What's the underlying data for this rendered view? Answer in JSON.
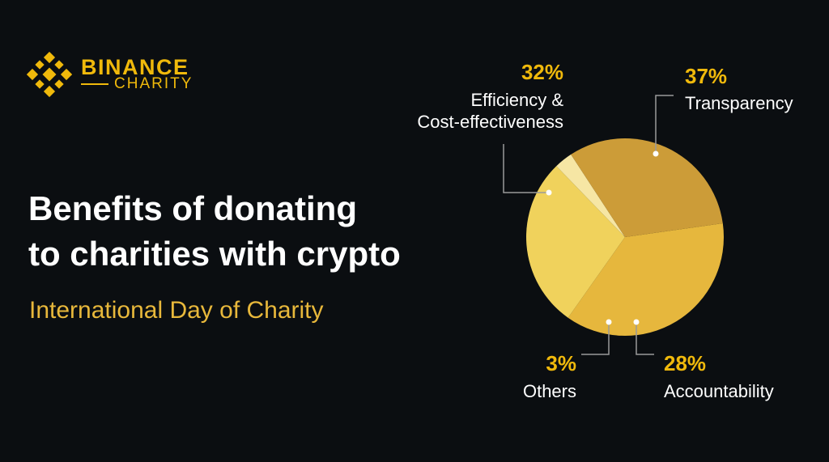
{
  "logo": {
    "brand": "BINANCE",
    "sub": "CHARITY",
    "icon": "binance-diamond-icon"
  },
  "headline": {
    "line1": "Benefits of donating",
    "line2": "to charities with crypto"
  },
  "subtitle": "International Day of Charity",
  "colors": {
    "background": "#0b0e11",
    "accent": "#f0b90b",
    "transparency": "#e6b73d",
    "accountability": "#f0d25c",
    "others": "#f6e6a4",
    "efficiency": "#cc9c38"
  },
  "chart_data": {
    "type": "pie",
    "slices": [
      {
        "key": "transparency",
        "label": "Transparency",
        "value": 37,
        "value_label": "37%"
      },
      {
        "key": "accountability",
        "label": "Accountability",
        "value": 28,
        "value_label": "28%"
      },
      {
        "key": "others",
        "label": "Others",
        "value": 3,
        "value_label": "3%"
      },
      {
        "key": "efficiency",
        "label_lines": [
          "Efficiency &",
          "Cost-effectiveness"
        ],
        "value": 32,
        "value_label": "32%"
      }
    ]
  }
}
